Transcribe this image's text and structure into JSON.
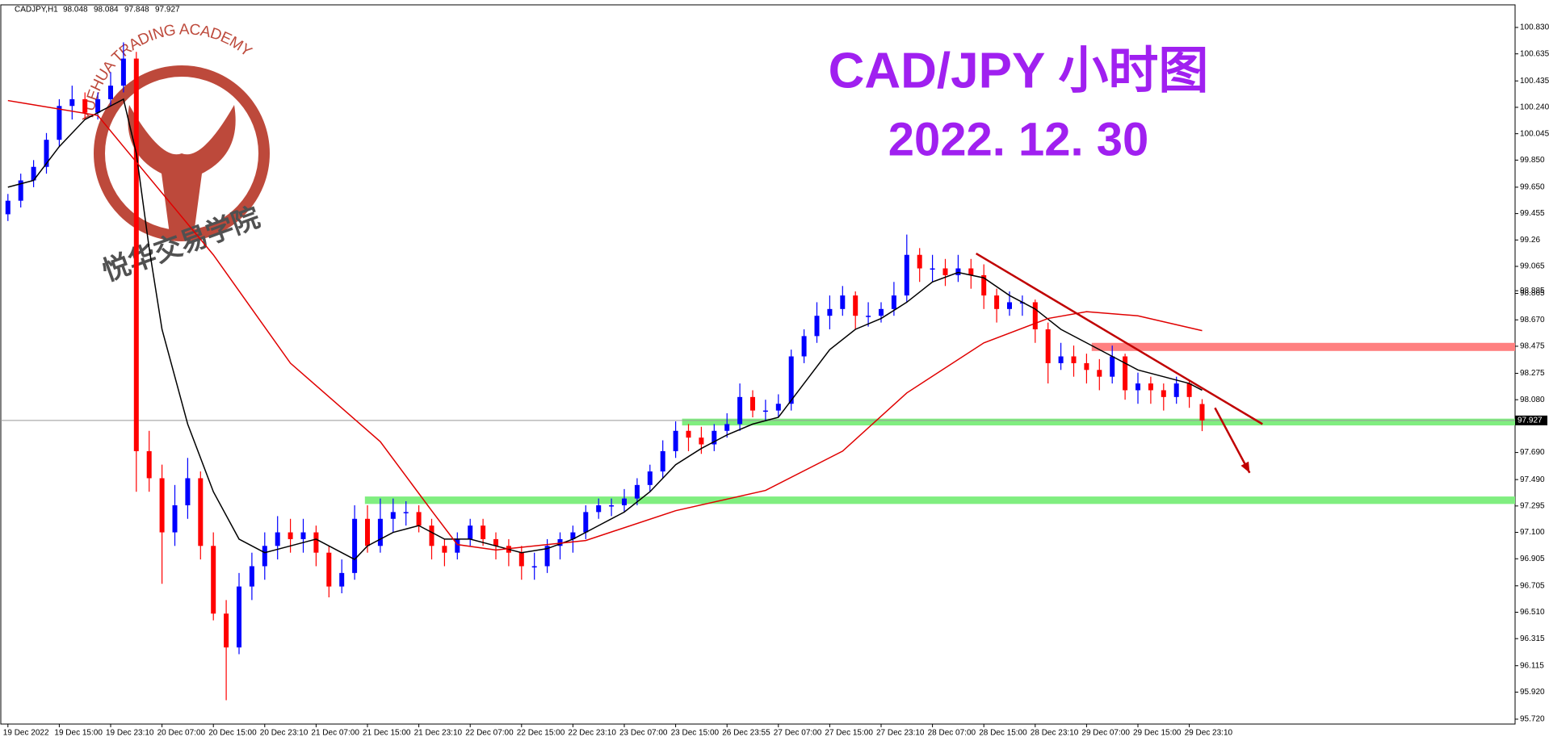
{
  "chart_data": {
    "type": "candlestick",
    "symbol": "CADJPY,H1",
    "title": "CAD/JPY 小时图",
    "subtitle": "2022. 12. 30",
    "watermark": {
      "text_en": "YUEHUA TRADING ACADEMY",
      "text_cn": "悦华交易学院"
    },
    "categories": [
      "19 Dec 2022",
      null,
      null,
      null,
      "19 Dec 15:00",
      null,
      null,
      null,
      "19 Dec 23:10",
      null,
      null,
      null,
      "20 Dec 07:00",
      null,
      null,
      null,
      "20 Dec 15:00",
      null,
      null,
      null,
      "20 Dec 23:10",
      null,
      null,
      null,
      "21 Dec 07:00",
      null,
      null,
      null,
      "21 Dec 15:00",
      null,
      null,
      null,
      "21 Dec 23:10",
      null,
      null,
      null,
      "22 Dec 07:00",
      null,
      null,
      null,
      "22 Dec 15:00",
      null,
      null,
      null,
      "22 Dec 23:10",
      null,
      null,
      null,
      "23 Dec 07:00",
      null,
      null,
      null,
      "23 Dec 15:00",
      null,
      null,
      null,
      "26 Dec 23:55",
      null,
      null,
      null,
      "27 Dec 07:00",
      null,
      null,
      null,
      "27 Dec 15:00",
      null,
      null,
      null,
      "27 Dec 23:10",
      null,
      null,
      null,
      "28 Dec 07:00",
      null,
      null,
      null,
      "28 Dec 15:00",
      null,
      null,
      null,
      "28 Dec 23:10",
      null,
      null,
      null,
      "29 Dec 07:00",
      null,
      null,
      null,
      "29 Dec 15:00",
      null,
      null,
      null,
      "29 Dec 23:10",
      null
    ],
    "candles": [
      [
        99.45,
        99.6,
        99.4,
        99.55
      ],
      [
        99.55,
        99.75,
        99.5,
        99.7
      ],
      [
        99.7,
        99.85,
        99.65,
        99.8
      ],
      [
        99.8,
        100.05,
        99.75,
        100.0
      ],
      [
        100.0,
        100.3,
        99.95,
        100.25
      ],
      [
        100.25,
        100.4,
        100.15,
        100.3
      ],
      [
        100.3,
        100.35,
        100.15,
        100.2
      ],
      [
        100.2,
        100.35,
        100.15,
        100.3
      ],
      [
        100.3,
        100.5,
        100.25,
        100.4
      ],
      [
        100.4,
        100.72,
        100.35,
        100.6
      ],
      [
        100.6,
        100.65,
        97.4,
        97.7
      ],
      [
        97.7,
        97.85,
        97.4,
        97.5
      ],
      [
        97.5,
        97.6,
        96.72,
        97.1
      ],
      [
        97.1,
        97.45,
        97.0,
        97.3
      ],
      [
        97.3,
        97.65,
        97.2,
        97.5
      ],
      [
        97.5,
        97.55,
        96.9,
        97.0
      ],
      [
        97.0,
        97.1,
        96.45,
        96.5
      ],
      [
        96.5,
        96.6,
        95.86,
        96.25
      ],
      [
        96.25,
        96.8,
        96.2,
        96.7
      ],
      [
        96.7,
        96.95,
        96.6,
        96.85
      ],
      [
        96.85,
        97.1,
        96.75,
        97.0
      ],
      [
        97.0,
        97.22,
        96.9,
        97.1
      ],
      [
        97.1,
        97.2,
        96.95,
        97.05
      ],
      [
        97.05,
        97.2,
        96.95,
        97.1
      ],
      [
        97.1,
        97.15,
        96.85,
        96.95
      ],
      [
        96.95,
        97.0,
        96.62,
        96.7
      ],
      [
        96.7,
        96.9,
        96.65,
        96.8
      ],
      [
        96.8,
        97.3,
        96.75,
        97.2
      ],
      [
        97.2,
        97.3,
        96.95,
        97.0
      ],
      [
        97.0,
        97.35,
        96.95,
        97.2
      ],
      [
        97.2,
        97.35,
        97.1,
        97.25
      ],
      [
        97.25,
        97.33,
        97.15,
        97.25
      ],
      [
        97.25,
        97.3,
        97.1,
        97.15
      ],
      [
        97.15,
        97.2,
        96.9,
        97.0
      ],
      [
        97.0,
        97.05,
        96.85,
        96.95
      ],
      [
        96.95,
        97.1,
        96.9,
        97.05
      ],
      [
        97.05,
        97.2,
        97.0,
        97.15
      ],
      [
        97.15,
        97.2,
        97.0,
        97.05
      ],
      [
        97.05,
        97.1,
        96.9,
        97.0
      ],
      [
        97.0,
        97.05,
        96.85,
        96.95
      ],
      [
        96.95,
        97.0,
        96.75,
        96.85
      ],
      [
        96.85,
        96.95,
        96.75,
        96.85
      ],
      [
        96.85,
        97.05,
        96.8,
        97.0
      ],
      [
        97.0,
        97.1,
        96.9,
        97.05
      ],
      [
        97.05,
        97.15,
        96.95,
        97.1
      ],
      [
        97.1,
        97.3,
        97.05,
        97.25
      ],
      [
        97.25,
        97.35,
        97.2,
        97.3
      ],
      [
        97.3,
        97.35,
        97.22,
        97.3
      ],
      [
        97.3,
        97.42,
        97.25,
        97.35
      ],
      [
        97.35,
        97.5,
        97.3,
        97.45
      ],
      [
        97.45,
        97.6,
        97.4,
        97.55
      ],
      [
        97.55,
        97.78,
        97.5,
        97.7
      ],
      [
        97.7,
        97.92,
        97.65,
        97.85
      ],
      [
        97.85,
        97.9,
        97.7,
        97.8
      ],
      [
        97.8,
        97.88,
        97.68,
        97.75
      ],
      [
        97.75,
        97.9,
        97.7,
        97.85
      ],
      [
        97.85,
        97.98,
        97.8,
        97.9
      ],
      [
        97.9,
        98.2,
        97.85,
        98.1
      ],
      [
        98.1,
        98.15,
        97.95,
        98.0
      ],
      [
        98.0,
        98.08,
        97.92,
        98.0
      ],
      [
        98.0,
        98.12,
        97.95,
        98.05
      ],
      [
        98.05,
        98.45,
        98.0,
        98.4
      ],
      [
        98.4,
        98.6,
        98.35,
        98.55
      ],
      [
        98.55,
        98.8,
        98.5,
        98.7
      ],
      [
        98.7,
        98.85,
        98.6,
        98.75
      ],
      [
        98.75,
        98.92,
        98.7,
        98.85
      ],
      [
        98.85,
        98.88,
        98.6,
        98.7
      ],
      [
        98.7,
        98.8,
        98.62,
        98.7
      ],
      [
        98.7,
        98.8,
        98.65,
        98.75
      ],
      [
        98.75,
        98.95,
        98.7,
        98.85
      ],
      [
        98.85,
        99.3,
        98.8,
        99.15
      ],
      [
        99.15,
        99.2,
        98.95,
        99.05
      ],
      [
        99.05,
        99.15,
        98.95,
        99.05
      ],
      [
        99.05,
        99.12,
        98.92,
        99.0
      ],
      [
        99.0,
        99.15,
        98.95,
        99.05
      ],
      [
        99.05,
        99.12,
        98.9,
        99.0
      ],
      [
        99.0,
        99.08,
        98.75,
        98.85
      ],
      [
        98.85,
        98.9,
        98.65,
        98.75
      ],
      [
        98.75,
        98.88,
        98.7,
        98.8
      ],
      [
        98.8,
        98.85,
        98.7,
        98.8
      ],
      [
        98.8,
        98.82,
        98.5,
        98.6
      ],
      [
        98.6,
        98.65,
        98.2,
        98.35
      ],
      [
        98.35,
        98.5,
        98.3,
        98.4
      ],
      [
        98.4,
        98.48,
        98.25,
        98.35
      ],
      [
        98.35,
        98.42,
        98.2,
        98.3
      ],
      [
        98.3,
        98.38,
        98.15,
        98.25
      ],
      [
        98.25,
        98.48,
        98.2,
        98.4
      ],
      [
        98.4,
        98.42,
        98.08,
        98.15
      ],
      [
        98.15,
        98.28,
        98.05,
        98.2
      ],
      [
        98.2,
        98.25,
        98.05,
        98.15
      ],
      [
        98.15,
        98.2,
        98.0,
        98.1
      ],
      [
        98.1,
        98.25,
        98.05,
        98.2
      ],
      [
        98.2,
        98.22,
        98.02,
        98.1
      ],
      [
        98.048,
        98.084,
        97.848,
        97.927
      ]
    ],
    "up_color": "#0000ff",
    "down_color": "#ff0000",
    "series": [
      {
        "color": "#000000",
        "x": [
          0,
          2,
          4,
          6,
          8,
          9,
          10,
          11,
          12,
          14,
          16,
          18,
          20,
          22,
          24,
          26,
          27,
          28,
          30,
          32,
          34,
          36,
          38,
          40,
          42,
          44,
          46,
          48,
          50,
          52,
          54,
          56,
          58,
          60,
          62,
          64,
          66,
          68,
          70,
          72,
          74,
          76,
          78,
          80,
          82,
          84,
          86,
          88,
          90,
          92,
          93
        ],
        "values": [
          99.65,
          99.7,
          99.95,
          100.15,
          100.25,
          100.3,
          99.9,
          99.2,
          98.6,
          97.9,
          97.4,
          97.05,
          96.95,
          97.0,
          97.05,
          96.95,
          96.9,
          97.0,
          97.1,
          97.15,
          97.05,
          97.05,
          97.0,
          96.95,
          96.98,
          97.05,
          97.15,
          97.25,
          97.4,
          97.6,
          97.72,
          97.82,
          97.9,
          97.95,
          98.2,
          98.45,
          98.6,
          98.68,
          98.8,
          98.95,
          99.02,
          98.98,
          98.85,
          98.75,
          98.6,
          98.5,
          98.4,
          98.3,
          98.25,
          98.2,
          98.15
        ]
      },
      {
        "color": "#e00000",
        "x": [
          0,
          7,
          9,
          16,
          22,
          29,
          33,
          35,
          38,
          45,
          52,
          59,
          65,
          70,
          76,
          81,
          84,
          88,
          93
        ],
        "values": [
          100.29,
          100.18,
          99.95,
          99.15,
          98.35,
          97.77,
          97.26,
          97.01,
          96.97,
          97.04,
          97.26,
          97.41,
          97.7,
          98.13,
          98.5,
          98.68,
          98.73,
          98.7,
          98.59
        ]
      }
    ],
    "zones": [
      {
        "color": "#ff8080",
        "start": 84.4,
        "top": 98.5,
        "bottom": 98.44
      },
      {
        "color": "#80ee80",
        "start": 52.5,
        "top": 97.94,
        "bottom": 97.89
      },
      {
        "color": "#80ee80",
        "start": 27.8,
        "top": 97.365,
        "bottom": 97.31
      }
    ],
    "trendline": {
      "color": "#c00000",
      "x": [
        75.4,
        97.7
      ],
      "values": [
        99.16,
        97.9
      ]
    },
    "arrow": {
      "color": "#c00000",
      "x": [
        94,
        96.7
      ],
      "values": [
        98.02,
        97.54
      ]
    },
    "ylim": [
      95.684,
      100.997
    ],
    "yticks": [
      {
        "value": 100.83,
        "label": "100.830"
      },
      {
        "value": 100.635,
        "label": "100.635"
      },
      {
        "value": 100.435,
        "label": "100.435"
      },
      {
        "value": 100.24,
        "label": "100.240"
      },
      {
        "value": 100.045,
        "label": "100.045"
      },
      {
        "value": 99.85,
        "label": "99.850"
      },
      {
        "value": 99.65,
        "label": "99.650"
      },
      99.455,
      99.26,
      99.065,
      98.865,
      {
        "value": 98.67,
        "label": "98.670"
      },
      98.475,
      98.275,
      {
        "value": 98.08,
        "label": "98.080"
      },
      98.885,
      {
        "value": 97.69,
        "label": "97.690"
      },
      {
        "value": 97.49,
        "label": "97.490"
      },
      97.295,
      {
        "value": 97.1,
        "label": "97.100"
      },
      96.905,
      96.705,
      {
        "value": 96.51,
        "label": "96.510"
      },
      96.315,
      96.115,
      {
        "value": 95.92,
        "label": "95.920"
      },
      {
        "value": 95.72,
        "label": "95.720"
      }
    ]
  }
}
